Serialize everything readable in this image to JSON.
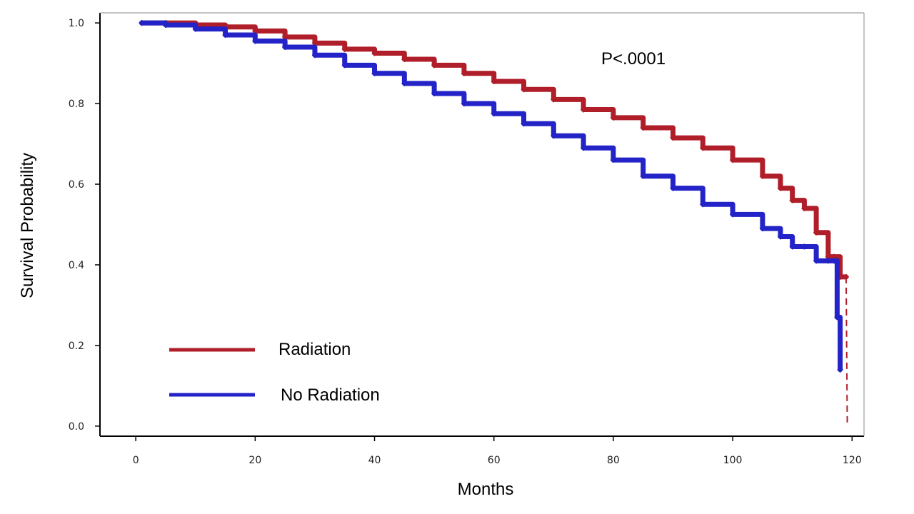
{
  "chart_data": {
    "type": "line",
    "subtype": "kaplan-meier step curves",
    "xlabel": "Months",
    "ylabel": "Survival Probability",
    "xlim": [
      -6,
      122
    ],
    "ylim": [
      -0.025,
      1.025
    ],
    "xticks": [
      0,
      20,
      40,
      60,
      80,
      100,
      120
    ],
    "yticks": [
      0.0,
      0.2,
      0.4,
      0.6,
      0.8,
      1.0
    ],
    "ytick_labels": [
      "0.0",
      "0.2",
      "0.4",
      "0.6",
      "0.8",
      "1.0"
    ],
    "annotation": "P<.0001",
    "legend_position": "bottom-left",
    "series": [
      {
        "name": "Radiation",
        "color": "#b01e2a",
        "censor_marks": true,
        "x": [
          1,
          5,
          10,
          15,
          20,
          25,
          30,
          35,
          40,
          45,
          50,
          55,
          60,
          65,
          70,
          75,
          80,
          85,
          90,
          95,
          100,
          105,
          108,
          110,
          112,
          114,
          116,
          117,
          118,
          119
        ],
        "y": [
          1.0,
          1.0,
          0.995,
          0.99,
          0.98,
          0.965,
          0.95,
          0.935,
          0.925,
          0.91,
          0.895,
          0.875,
          0.855,
          0.835,
          0.81,
          0.785,
          0.765,
          0.74,
          0.715,
          0.69,
          0.66,
          0.62,
          0.59,
          0.56,
          0.54,
          0.48,
          0.42,
          0.42,
          0.37,
          0.37
        ],
        "dashed_tail": {
          "x": [
            119,
            119.2
          ],
          "y": [
            0.37,
            0.0
          ]
        }
      },
      {
        "name": "No Radiation",
        "color": "#2323c8",
        "censor_marks": true,
        "x": [
          1,
          5,
          10,
          15,
          20,
          25,
          30,
          35,
          40,
          45,
          50,
          55,
          60,
          65,
          70,
          75,
          80,
          85,
          90,
          95,
          100,
          105,
          108,
          110,
          112,
          114,
          116,
          117,
          117.5,
          118
        ],
        "y": [
          1.0,
          0.995,
          0.985,
          0.97,
          0.955,
          0.94,
          0.92,
          0.895,
          0.875,
          0.85,
          0.825,
          0.8,
          0.775,
          0.75,
          0.72,
          0.69,
          0.66,
          0.62,
          0.59,
          0.55,
          0.525,
          0.49,
          0.47,
          0.445,
          0.445,
          0.41,
          0.41,
          0.41,
          0.27,
          0.14
        ]
      }
    ]
  }
}
